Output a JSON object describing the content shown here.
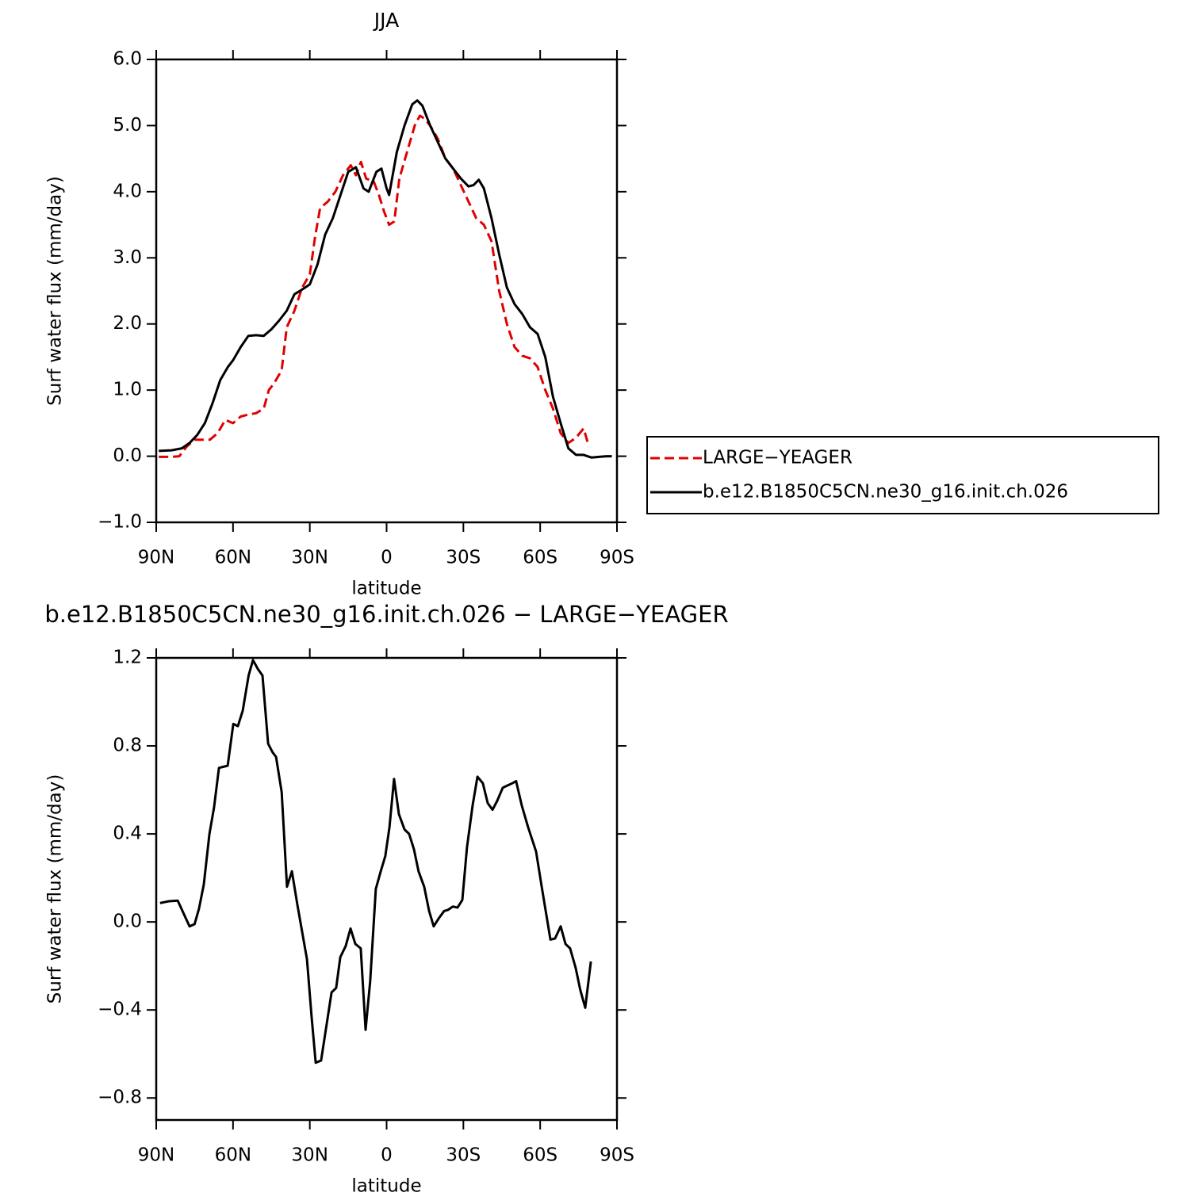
{
  "chart_data": [
    {
      "type": "line",
      "title": "JJA",
      "x_label": "latitude",
      "y_label": "Surf water flux (mm/day)",
      "xlim": [
        90,
        -90
      ],
      "xticks": [
        {
          "value": 90,
          "label": "90N"
        },
        {
          "value": 60,
          "label": "60N"
        },
        {
          "value": 30,
          "label": "30N"
        },
        0,
        {
          "value": -30,
          "label": "30S"
        },
        {
          "value": -60,
          "label": "60S"
        },
        {
          "value": -90,
          "label": "90S"
        }
      ],
      "ylim": [
        -1,
        6
      ],
      "yticks": [
        {
          "value": -1,
          "label": "−1.0"
        },
        {
          "value": 0,
          "label": "0.0"
        },
        {
          "value": 1,
          "label": "1.0"
        },
        {
          "value": 2,
          "label": "2.0"
        },
        {
          "value": 3,
          "label": "3.0"
        },
        {
          "value": 4,
          "label": "4.0"
        },
        {
          "value": 5,
          "label": "5.0"
        },
        {
          "value": 6,
          "label": "6.0"
        }
      ],
      "legend": "right",
      "series": [
        {
          "name": "LARGE−YEAGER",
          "color": "#e00000",
          "style": "dashed",
          "x": [
            89,
            84,
            81,
            78,
            75,
            72,
            69,
            66,
            63,
            60,
            57,
            54,
            51,
            48,
            46,
            44,
            41,
            39,
            36,
            33,
            30,
            28,
            26,
            23,
            20,
            17,
            14,
            12,
            10,
            8,
            5,
            3,
            1,
            -1,
            -3,
            -5,
            -8,
            -11,
            -13,
            -15,
            -17,
            -20,
            -23,
            -26,
            -29,
            -32,
            -35,
            -38,
            -41,
            -44,
            -47,
            -50,
            -53,
            -56,
            -59,
            -62,
            -65,
            -68,
            -71,
            -74,
            -77,
            -79
          ],
          "values": [
            -0.01,
            -0.01,
            0.0,
            0.15,
            0.25,
            0.25,
            0.25,
            0.35,
            0.55,
            0.5,
            0.6,
            0.63,
            0.65,
            0.72,
            1.0,
            1.1,
            1.3,
            1.95,
            2.2,
            2.55,
            2.75,
            3.3,
            3.75,
            3.85,
            4.0,
            4.25,
            4.4,
            4.25,
            4.45,
            4.2,
            4.15,
            3.95,
            3.7,
            3.5,
            3.55,
            4.2,
            4.6,
            5.0,
            5.15,
            5.1,
            5.0,
            4.8,
            4.5,
            4.35,
            4.1,
            3.85,
            3.6,
            3.5,
            3.25,
            2.5,
            2.0,
            1.65,
            1.52,
            1.48,
            1.35,
            1.0,
            0.72,
            0.35,
            0.2,
            0.28,
            0.42,
            0.15
          ]
        },
        {
          "name": "b.e12.B1850C5CN.ne30_g16.init.ch.026",
          "color": "#000000",
          "style": "solid",
          "x": [
            89,
            84,
            80,
            77,
            74,
            71,
            68,
            65,
            62,
            60,
            57,
            54,
            51,
            48,
            45,
            42,
            39,
            36,
            33,
            30,
            27,
            24,
            21,
            18,
            15,
            12,
            9,
            7,
            4,
            2,
            0,
            -1,
            -4,
            -7,
            -10,
            -12,
            -14,
            -17,
            -20,
            -23,
            -26,
            -29,
            -32,
            -34,
            -36,
            -38,
            -41,
            -44,
            -47,
            -50,
            -53,
            -56,
            -59,
            -62,
            -65,
            -68,
            -71,
            -74,
            -77,
            -80,
            -83,
            -86,
            -88
          ],
          "values": [
            0.08,
            0.09,
            0.12,
            0.2,
            0.32,
            0.5,
            0.8,
            1.15,
            1.35,
            1.45,
            1.65,
            1.82,
            1.83,
            1.82,
            1.92,
            2.05,
            2.2,
            2.45,
            2.52,
            2.6,
            2.9,
            3.35,
            3.6,
            3.95,
            4.3,
            4.37,
            4.05,
            4.0,
            4.3,
            4.35,
            4.05,
            3.95,
            4.6,
            5.0,
            5.32,
            5.38,
            5.3,
            5.0,
            4.75,
            4.5,
            4.35,
            4.2,
            4.08,
            4.1,
            4.18,
            4.05,
            3.6,
            3.05,
            2.55,
            2.3,
            2.15,
            1.95,
            1.85,
            1.5,
            0.9,
            0.5,
            0.12,
            0.02,
            0.02,
            -0.02,
            -0.01,
            0.0,
            0.0
          ]
        }
      ]
    },
    {
      "type": "line",
      "title": "b.e12.B1850C5CN.ne30_g16.init.ch.026 − LARGE−YEAGER",
      "x_label": "latitude",
      "y_label": "Surf water flux (mm/day)",
      "xlim": [
        90,
        -90
      ],
      "xticks": [
        {
          "value": 90,
          "label": "90N"
        },
        {
          "value": 60,
          "label": "60N"
        },
        {
          "value": 30,
          "label": "30N"
        },
        0,
        {
          "value": -30,
          "label": "30S"
        },
        {
          "value": -60,
          "label": "60S"
        },
        {
          "value": -90,
          "label": "90S"
        }
      ],
      "ylim": [
        -0.9,
        1.2
      ],
      "yticks": [
        {
          "value": -0.8,
          "label": "−0.8"
        },
        {
          "value": -0.4,
          "label": "−0.4"
        },
        {
          "value": 0,
          "label": "0.0"
        },
        0.4,
        0.8,
        1.2
      ],
      "series": [
        {
          "color": "#000000",
          "style": "solid",
          "x": [
            88.5,
            85,
            81.6,
            77,
            75,
            73.3,
            71.4,
            69.2,
            67.4,
            65.5,
            62.1,
            59.9,
            58.1,
            56.2,
            53.9,
            52.2,
            50.3,
            48.5,
            46.3,
            44.5,
            43.2,
            41,
            38.9,
            37,
            34.9,
            31.1,
            29.3,
            27.7,
            25.6,
            21.5,
            19.7,
            18.1,
            16,
            14.1,
            12.2,
            10.1,
            8.2,
            6.4,
            4.2,
            2.3,
            0.5,
            -1.1,
            -2.9,
            -4.8,
            -7,
            -8.8,
            -10.7,
            -12.5,
            -14.7,
            -16.6,
            -18.4,
            -20.6,
            -22.5,
            -24,
            -25.9,
            -27.7,
            -29.6,
            -31.4,
            -33.6,
            -35.5,
            -37.6,
            -39.5,
            -41.4,
            -43.2,
            -45.4,
            -49.1,
            -50.6,
            -52.8,
            -55.3,
            -58.4,
            -60.6,
            -64,
            -65.8,
            -68,
            -69.9,
            -71.7,
            -73.9,
            -75.7,
            -77.6,
            -79.8
          ],
          "values": [
            0.086,
            0.094,
            0.097,
            -0.02,
            -0.01,
            0.06,
            0.17,
            0.4,
            0.52,
            0.7,
            0.71,
            0.9,
            0.89,
            0.96,
            1.12,
            1.19,
            1.15,
            1.12,
            0.81,
            0.77,
            0.75,
            0.59,
            0.16,
            0.23,
            0.08,
            -0.17,
            -0.43,
            -0.64,
            -0.63,
            -0.32,
            -0.3,
            -0.16,
            -0.11,
            -0.03,
            -0.1,
            -0.12,
            -0.49,
            -0.27,
            0.15,
            0.23,
            0.3,
            0.43,
            0.65,
            0.49,
            0.42,
            0.4,
            0.33,
            0.23,
            0.16,
            0.05,
            -0.02,
            0.02,
            0.05,
            0.055,
            0.07,
            0.065,
            0.1,
            0.34,
            0.53,
            0.66,
            0.63,
            0.54,
            0.51,
            0.55,
            0.61,
            0.63,
            0.64,
            0.53,
            0.43,
            0.32,
            0.16,
            -0.08,
            -0.075,
            -0.02,
            -0.1,
            -0.12,
            -0.21,
            -0.31,
            -0.39,
            -0.18
          ]
        }
      ]
    }
  ]
}
